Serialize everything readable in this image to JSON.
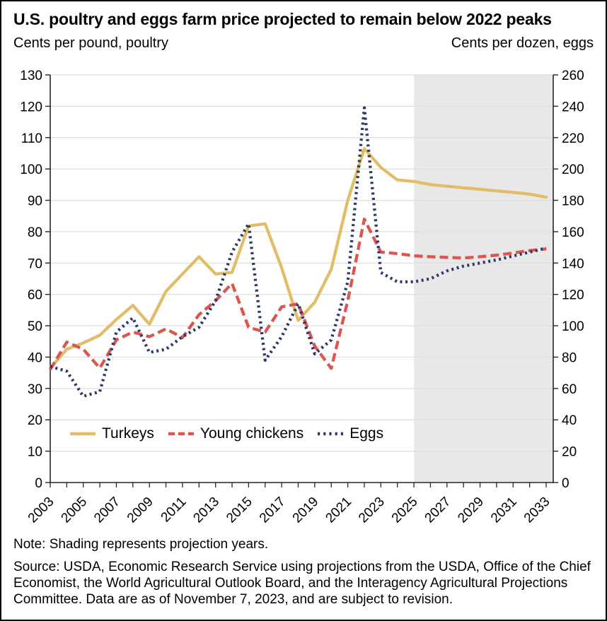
{
  "header": {
    "title": "U.S. poultry and eggs farm price projected to remain below 2022 peaks"
  },
  "footer": {
    "note": "Note: Shading represents projection years.",
    "source": "Source: USDA, Economic Research Service using projections from the USDA, Office of the Chief Economist, the World Agricultural Outlook Board, and the Interagency Agricultural Projections Committee. Data are as of November 7, 2023, and are subject to revision."
  },
  "colors": {
    "turkeys": "#e2bd67",
    "young_chickens": "#d9574f",
    "eggs": "#2c3a6b",
    "shading": "#e8e8e8",
    "gridline": "#dedede",
    "axis": "#262626",
    "label": "#000000"
  },
  "chart_data": {
    "type": "line",
    "title": "U.S. poultry and eggs farm price projected to remain below 2022 peaks",
    "left_axis_title": "Cents per pound, poultry",
    "right_axis_title": "Cents per dozen, eggs",
    "left_ylim": [
      0,
      130
    ],
    "right_ylim": [
      0,
      260
    ],
    "left_ticks": [
      0,
      10,
      20,
      30,
      40,
      50,
      60,
      70,
      80,
      90,
      100,
      110,
      120,
      130
    ],
    "right_ticks": [
      0,
      20,
      40,
      60,
      80,
      100,
      120,
      140,
      160,
      180,
      200,
      220,
      240,
      260
    ],
    "x": [
      2003,
      2004,
      2005,
      2006,
      2007,
      2008,
      2009,
      2010,
      2011,
      2012,
      2013,
      2014,
      2015,
      2016,
      2017,
      2018,
      2019,
      2020,
      2021,
      2022,
      2023,
      2024,
      2025,
      2026,
      2027,
      2028,
      2029,
      2030,
      2031,
      2032,
      2033
    ],
    "x_label_years": [
      2003,
      2005,
      2007,
      2009,
      2011,
      2013,
      2015,
      2017,
      2019,
      2021,
      2023,
      2025,
      2027,
      2029,
      2031,
      2033
    ],
    "projection_start_year": 2025,
    "grid": "horizontal",
    "legend_position": "inside-bottom-left",
    "series": [
      {
        "name": "Turkeys",
        "axis": "left",
        "unit": "cents per pound",
        "style": "solid",
        "color": "#e2bd67",
        "values": [
          36.5,
          42.5,
          44.5,
          47,
          52,
          56.5,
          50.5,
          61,
          66.5,
          72,
          66.5,
          67,
          81.8,
          82.5,
          68.5,
          51.7,
          57.5,
          68,
          90,
          106.5,
          100.5,
          96.5,
          96,
          95,
          94.5,
          94,
          93.5,
          93,
          92.5,
          92,
          91
        ]
      },
      {
        "name": "Young chickens",
        "axis": "left",
        "unit": "cents per pound",
        "style": "dashed",
        "color": "#d9574f",
        "values": [
          36,
          44.8,
          42.5,
          36.5,
          45.5,
          48,
          46.5,
          49,
          46.2,
          53.5,
          58,
          63.5,
          49.5,
          48,
          56,
          57,
          43.5,
          36.4,
          58,
          84,
          73.5,
          73,
          72.3,
          72,
          71.8,
          71.6,
          72,
          72.5,
          73.2,
          74,
          74.5
        ]
      },
      {
        "name": "Eggs",
        "axis": "right",
        "unit": "cents per dozen",
        "style": "dotted",
        "color": "#2c3a6b",
        "values": [
          74,
          71,
          55,
          58,
          96,
          105,
          83,
          85,
          93,
          99,
          116,
          147,
          165,
          78,
          93,
          114,
          82,
          91,
          128,
          239,
          134,
          128,
          128,
          130,
          135,
          138,
          140,
          142,
          144.5,
          147,
          149.5
        ]
      }
    ]
  }
}
